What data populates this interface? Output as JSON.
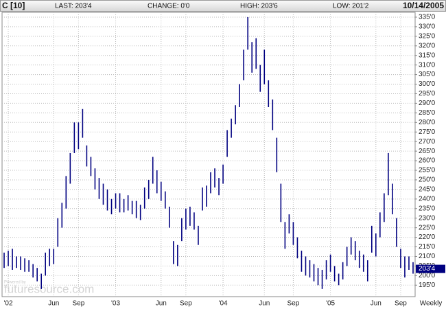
{
  "chart_data": {
    "type": "hilo",
    "symbol": "C [10]",
    "last": "LAST: 203'4",
    "change": "CHANGE: 0'0",
    "high_text": "HIGH: 203'6",
    "low_text": "LOW: 201'2",
    "date": "10/14/2005",
    "x_axis_label": "Weekly",
    "watermark": "futuresource.com",
    "watermark_small": "Powered by",
    "color": "#000080",
    "grid": true,
    "categories": [
      null,
      "'02",
      null,
      null,
      null,
      null,
      null,
      null,
      null,
      null,
      null,
      null,
      "Jun",
      null,
      null,
      null,
      null,
      null,
      "Sep",
      null,
      null,
      null,
      null,
      null,
      null,
      null,
      null,
      "'03",
      null,
      null,
      null,
      null,
      null,
      null,
      null,
      null,
      null,
      null,
      "Jun",
      null,
      null,
      null,
      null,
      null,
      "Sep",
      null,
      null,
      null,
      null,
      null,
      null,
      null,
      null,
      "'04",
      null,
      null,
      null,
      null,
      null,
      null,
      null,
      null,
      null,
      "Jun",
      null,
      null,
      null,
      null,
      null,
      null,
      "Sep",
      null,
      null,
      null,
      null,
      null,
      null,
      null,
      null,
      "'05",
      null,
      null,
      null,
      null,
      null,
      null,
      null,
      null,
      null,
      null,
      "Jun",
      null,
      null,
      null,
      null,
      null,
      "Sep",
      null,
      null,
      null
    ],
    "high": [
      212,
      213,
      214,
      210,
      210,
      209,
      208,
      206,
      204,
      201,
      212,
      214,
      214,
      230,
      238,
      252,
      264,
      280,
      280,
      287,
      268,
      262,
      256,
      251,
      248,
      245,
      240,
      243,
      243,
      240,
      242,
      239,
      239,
      237,
      246,
      250,
      262,
      255,
      249,
      244,
      236,
      218,
      216,
      230,
      235,
      236,
      233,
      226,
      246,
      247,
      254,
      256,
      251,
      258,
      276,
      282,
      289,
      300,
      318,
      335,
      322,
      324,
      310,
      318,
      302,
      292,
      272,
      248,
      228,
      232,
      228,
      220,
      213,
      210,
      208,
      206,
      204,
      203,
      208,
      211,
      205,
      201,
      207,
      215,
      220,
      218,
      213,
      211,
      208,
      226,
      222,
      233,
      243,
      264,
      248,
      230,
      214,
      210,
      210,
      207
    ],
    "low": [
      204,
      205,
      203,
      204,
      203,
      202,
      202,
      199,
      197,
      193,
      200,
      205,
      206,
      215,
      225,
      235,
      248,
      264,
      266,
      272,
      257,
      252,
      245,
      240,
      237,
      234,
      232,
      235,
      233,
      233,
      234,
      232,
      230,
      229,
      235,
      240,
      248,
      243,
      239,
      235,
      225,
      206,
      205,
      218,
      224,
      226,
      224,
      216,
      234,
      236,
      243,
      246,
      242,
      248,
      262,
      272,
      279,
      288,
      302,
      318,
      306,
      308,
      296,
      300,
      288,
      276,
      254,
      228,
      214,
      222,
      216,
      209,
      202,
      200,
      199,
      197,
      195,
      193,
      198,
      202,
      197,
      195,
      198,
      205,
      211,
      208,
      204,
      202,
      197,
      212,
      210,
      220,
      228,
      242,
      232,
      215,
      204,
      199,
      203,
      201
    ],
    "ylim": [
      189,
      337.5
    ],
    "yticks": [
      {
        "value": 195,
        "label": "195'0"
      },
      {
        "value": 200,
        "label": "200'0"
      },
      {
        "value": 205,
        "label": "205'0"
      },
      {
        "value": 210,
        "label": "210'0"
      },
      {
        "value": 215,
        "label": "215'0"
      },
      {
        "value": 220,
        "label": "220'0"
      },
      {
        "value": 225,
        "label": "225'0"
      },
      {
        "value": 230,
        "label": "230'0"
      },
      {
        "value": 235,
        "label": "235'0"
      },
      {
        "value": 240,
        "label": "240'0"
      },
      {
        "value": 245,
        "label": "245'0"
      },
      {
        "value": 250,
        "label": "250'0"
      },
      {
        "value": 255,
        "label": "255'0"
      },
      {
        "value": 260,
        "label": "260'0"
      },
      {
        "value": 265,
        "label": "265'0"
      },
      {
        "value": 270,
        "label": "270'0"
      },
      {
        "value": 275,
        "label": "275'0"
      },
      {
        "value": 280,
        "label": "280'0"
      },
      {
        "value": 285,
        "label": "285'0"
      },
      {
        "value": 290,
        "label": "290'0"
      },
      {
        "value": 295,
        "label": "295'0"
      },
      {
        "value": 300,
        "label": "300'0"
      },
      {
        "value": 305,
        "label": "305'0"
      },
      {
        "value": 310,
        "label": "310'0"
      },
      {
        "value": 315,
        "label": "315'0"
      },
      {
        "value": 320,
        "label": "320'0"
      },
      {
        "value": 325,
        "label": "325'0"
      },
      {
        "value": 330,
        "label": "330'0"
      },
      {
        "value": 335,
        "label": "335'0"
      }
    ],
    "last_marker": {
      "value": 203.5,
      "label": "203'4"
    }
  }
}
